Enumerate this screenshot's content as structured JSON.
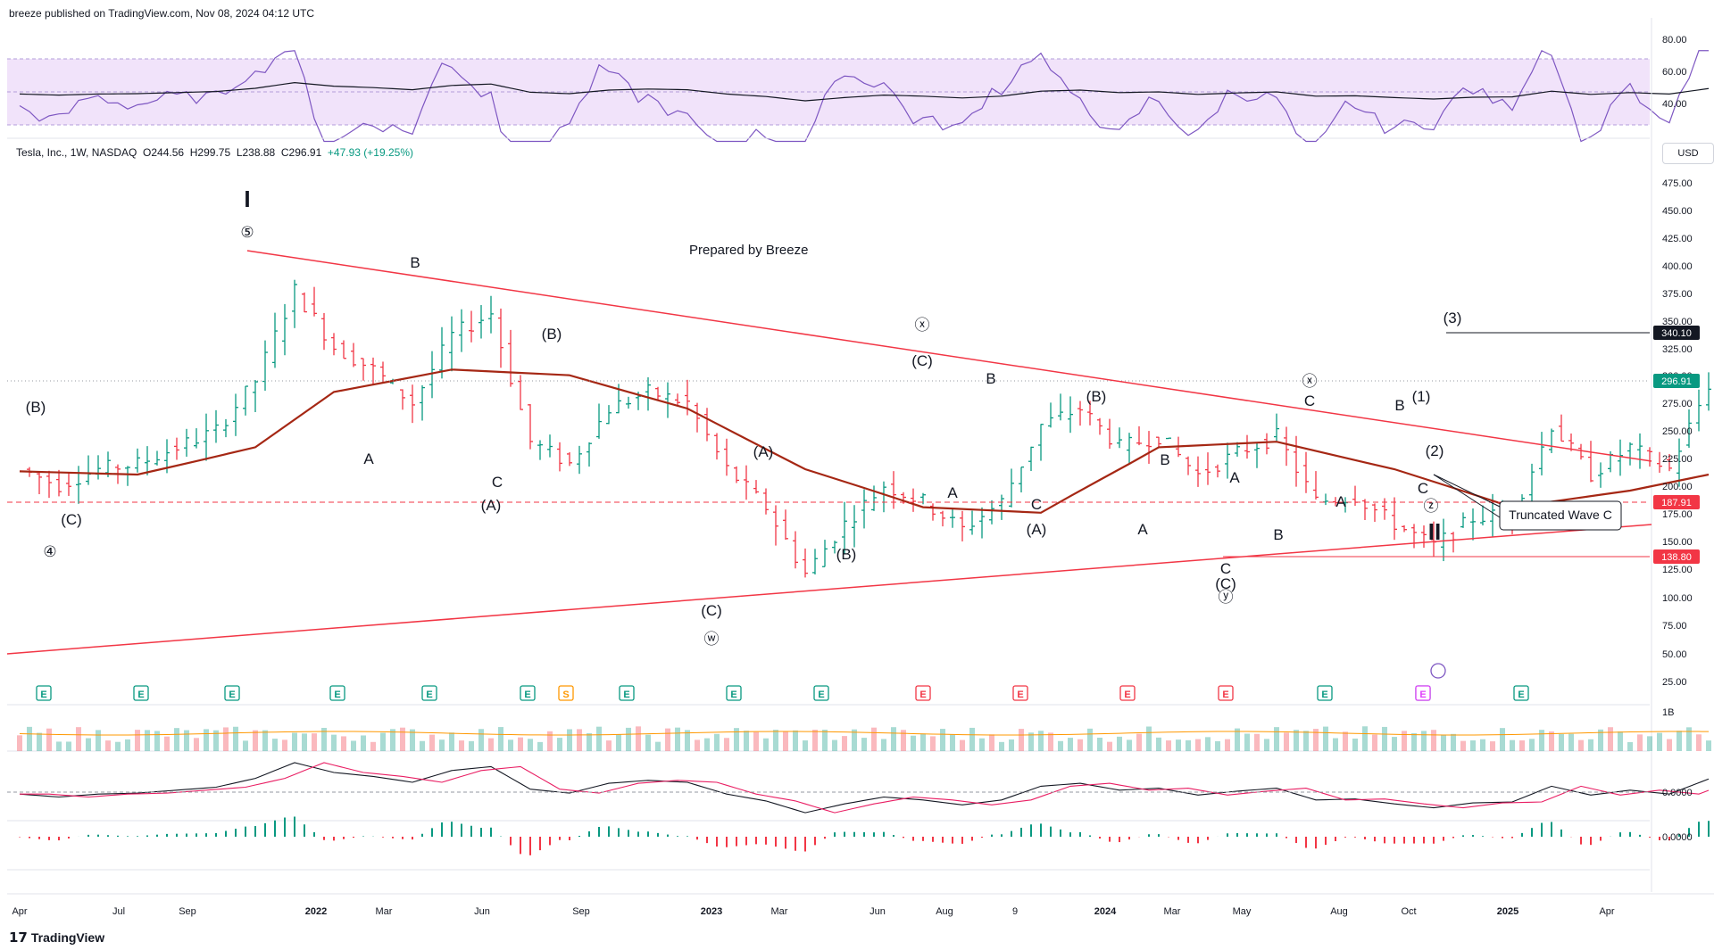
{
  "header": {
    "attribution": "breeze published on TradingView.com, Nov 08, 2024 04:12 UTC"
  },
  "symbol_line": {
    "name": "Tesla, Inc., 1W, NASDAQ",
    "open": "O244.56",
    "high": "H299.75",
    "low": "L238.88",
    "close": "C296.91",
    "change": "+47.93 (+19.25%)"
  },
  "prepared_by": "Prepared by Breeze",
  "currency_button": "USD",
  "footer": {
    "logo": "TradingView"
  },
  "colors": {
    "rsi_band": "#f1e3fa",
    "rsi_line": "#7e57c2",
    "ma_line": "#a52714",
    "trend_line": "#f23645",
    "bull": "#089981",
    "bear": "#f23645",
    "earnings_up": "#089981",
    "earnings_down": "#f23645",
    "pink_tag": "#e91e63"
  },
  "chart_data": {
    "type": "line",
    "title": "",
    "xlabel": "",
    "ylabel": "",
    "x_ticks": [
      "Apr",
      "Jul",
      "Sep",
      "2022",
      "Mar",
      "Jun",
      "Sep",
      "2023",
      "Mar",
      "Jun",
      "Aug",
      "9",
      "2024",
      "Mar",
      "May",
      "Aug",
      "Oct",
      "2025",
      "Apr"
    ],
    "price_axis_ticks": [
      "475.00",
      "450.00",
      "425.00",
      "400.00",
      "375.00",
      "350.00",
      "325.00",
      "300.00",
      "275.00",
      "250.00",
      "225.00",
      "200.00",
      "175.00",
      "150.00",
      "125.00",
      "100.00",
      "75.00",
      "50.00",
      "25.00"
    ],
    "rsi_axis_ticks": [
      "80.00",
      "60.00",
      "40.00"
    ],
    "volume_axis_tick": "1B",
    "macd_axis_ticks": [
      "0.0000",
      "0.0000"
    ],
    "price_tags": [
      {
        "label": "340.10",
        "style": "dark"
      },
      {
        "label": "296.91",
        "style": "green"
      },
      {
        "label": "187.91",
        "style": "red"
      },
      {
        "label": "138.80",
        "style": "red"
      }
    ],
    "price_weekly_close": [
      {
        "date": "2021-04",
        "price": 220
      },
      {
        "date": "2021-05",
        "price": 205
      },
      {
        "date": "2021-06",
        "price": 220
      },
      {
        "date": "2021-07",
        "price": 225
      },
      {
        "date": "2021-08",
        "price": 240
      },
      {
        "date": "2021-09",
        "price": 255
      },
      {
        "date": "2021-10",
        "price": 300
      },
      {
        "date": "2021-11",
        "price": 380
      },
      {
        "date": "2021-12",
        "price": 330
      },
      {
        "date": "2022-01",
        "price": 310
      },
      {
        "date": "2022-02",
        "price": 280
      },
      {
        "date": "2022-03",
        "price": 340
      },
      {
        "date": "2022-04",
        "price": 360
      },
      {
        "date": "2022-05",
        "price": 245
      },
      {
        "date": "2022-06",
        "price": 225
      },
      {
        "date": "2022-07",
        "price": 275
      },
      {
        "date": "2022-08",
        "price": 290
      },
      {
        "date": "2022-09",
        "price": 280
      },
      {
        "date": "2022-10",
        "price": 220
      },
      {
        "date": "2022-11",
        "price": 185
      },
      {
        "date": "2022-12",
        "price": 125
      },
      {
        "date": "2023-01",
        "price": 170
      },
      {
        "date": "2023-02",
        "price": 205
      },
      {
        "date": "2023-03",
        "price": 190
      },
      {
        "date": "2023-04",
        "price": 165
      },
      {
        "date": "2023-05",
        "price": 190
      },
      {
        "date": "2023-06",
        "price": 260
      },
      {
        "date": "2023-07",
        "price": 275
      },
      {
        "date": "2023-08",
        "price": 240
      },
      {
        "date": "2023-09",
        "price": 250
      },
      {
        "date": "2023-10",
        "price": 215
      },
      {
        "date": "2023-11",
        "price": 235
      },
      {
        "date": "2023-12",
        "price": 250
      },
      {
        "date": "2024-01",
        "price": 190
      },
      {
        "date": "2024-02",
        "price": 195
      },
      {
        "date": "2024-03",
        "price": 170
      },
      {
        "date": "2024-04",
        "price": 150
      },
      {
        "date": "2024-05",
        "price": 175
      },
      {
        "date": "2024-06",
        "price": 180
      },
      {
        "date": "2024-07",
        "price": 260
      },
      {
        "date": "2024-08",
        "price": 215
      },
      {
        "date": "2024-09",
        "price": 240
      },
      {
        "date": "2024-10",
        "price": 220
      },
      {
        "date": "2024-11",
        "price": 296.91
      }
    ],
    "moving_average": [
      {
        "date": "2021-04",
        "price": 218
      },
      {
        "date": "2021-07",
        "price": 215
      },
      {
        "date": "2021-10",
        "price": 240
      },
      {
        "date": "2021-12",
        "price": 290
      },
      {
        "date": "2022-03",
        "price": 310
      },
      {
        "date": "2022-06",
        "price": 305
      },
      {
        "date": "2022-09",
        "price": 275
      },
      {
        "date": "2022-12",
        "price": 220
      },
      {
        "date": "2023-03",
        "price": 185
      },
      {
        "date": "2023-06",
        "price": 180
      },
      {
        "date": "2023-09",
        "price": 240
      },
      {
        "date": "2023-12",
        "price": 245
      },
      {
        "date": "2024-03",
        "price": 220
      },
      {
        "date": "2024-06",
        "price": 185
      },
      {
        "date": "2024-09",
        "price": 200
      },
      {
        "date": "2024-11",
        "price": 215
      }
    ],
    "wave_labels": [
      "I",
      "⑤",
      "B",
      "(B)",
      "ⓧ",
      "(C)",
      "B",
      "(B)",
      "ⓧ",
      "(3)",
      "C",
      "B",
      "(1)",
      "(2)",
      "C",
      "ⓩ",
      "II",
      "(B)",
      "(C)",
      "④",
      "A",
      "C",
      "(A)",
      "(A)",
      "(B)",
      "(C)",
      "ⓦ",
      "A",
      "C",
      "(A)",
      "B",
      "A",
      "A",
      "B",
      "A",
      "C",
      "(C)",
      "ⓨ"
    ],
    "callout": "Truncated Wave C",
    "levels": [
      340.1,
      187.91,
      138.8
    ],
    "events": [
      "E",
      "E",
      "E",
      "E",
      "E",
      "E",
      "S",
      "E",
      "E",
      "E",
      "E",
      "E",
      "E",
      "E",
      "E",
      "E",
      "E",
      "E"
    ]
  }
}
